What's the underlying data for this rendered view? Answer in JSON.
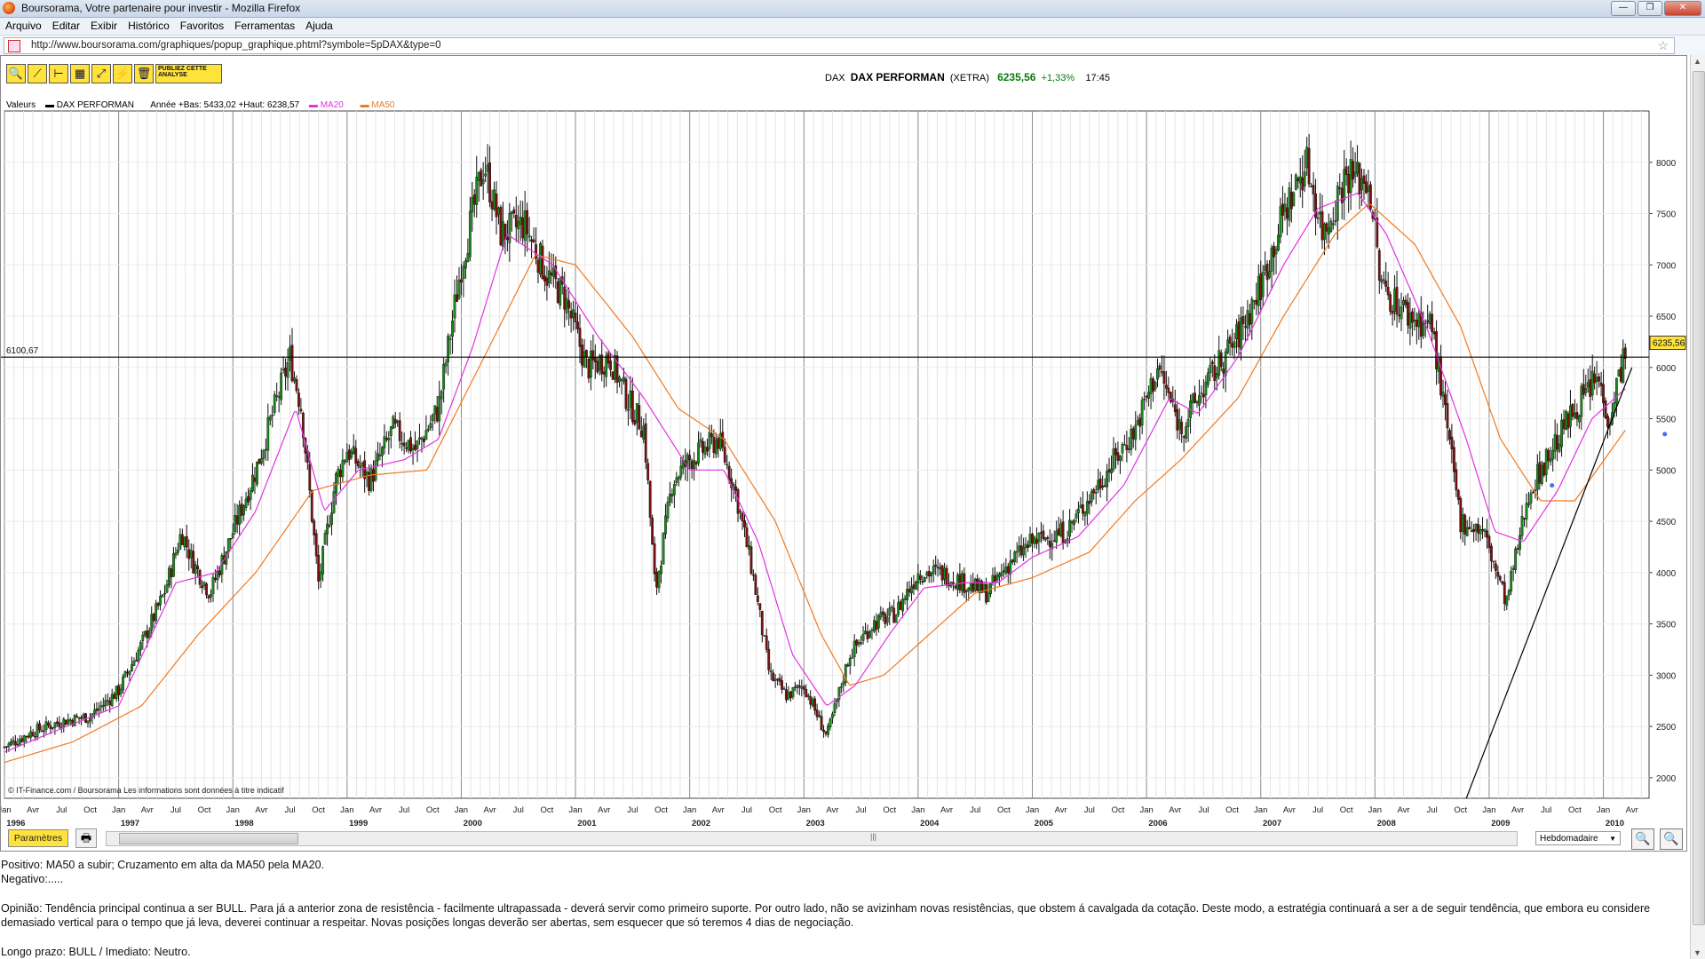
{
  "window": {
    "title": "Boursorama, Votre partenaire pour investir - Mozilla Firefox",
    "buttons": [
      "—",
      "❐",
      "✕"
    ]
  },
  "menu": [
    "Arquivo",
    "Editar",
    "Exibir",
    "Histórico",
    "Favoritos",
    "Ferramentas",
    "Ajuda"
  ],
  "urlbar": {
    "url": "http://www.boursorama.com/graphiques/popup_graphique.phtml?symbole=5pDAX&type=0"
  },
  "toolbar": {
    "publish_label": "PUBLIEZ CETTE ANALYSE"
  },
  "quote": {
    "code": "DAX",
    "name": "DAX PERFORMAN",
    "market": "(XETRA)",
    "price": "6235,56",
    "change": "+1,33%",
    "time": "17:45"
  },
  "legend": {
    "label": "Valeurs",
    "series": "DAX PERFORMAN",
    "range": "Année +Bas: 5433,02 +Haut: 6238,57",
    "ma20": "MA20",
    "ma50": "MA50"
  },
  "colors": {
    "ma20": "#e233e2",
    "ma50": "#f07a20",
    "price_tag": "#ffe23a",
    "accent": "#ffe23a"
  },
  "chart_data": {
    "type": "line",
    "frequency_label": "Hebdomadaire",
    "y_ticks": [
      2000,
      2500,
      3000,
      3500,
      4000,
      4500,
      5000,
      5500,
      6000,
      6500,
      7000,
      7500,
      8000
    ],
    "ylim": [
      1800,
      8500
    ],
    "x_years": [
      "1996",
      "1997",
      "1998",
      "1999",
      "2000",
      "2001",
      "2002",
      "2003",
      "2004",
      "2005",
      "2006",
      "2007",
      "2008",
      "2009",
      "2010"
    ],
    "x_month_labels": [
      "Jan",
      "Avr",
      "Jul",
      "Oct"
    ],
    "hline": {
      "label": "6100,67",
      "value": 6100.67
    },
    "last_price_tag": "6235,56",
    "price_points": [
      [
        1996.0,
        2300
      ],
      [
        1996.25,
        2450
      ],
      [
        1996.5,
        2550
      ],
      [
        1996.75,
        2600
      ],
      [
        1997.0,
        2850
      ],
      [
        1997.2,
        3300
      ],
      [
        1997.4,
        3800
      ],
      [
        1997.55,
        4400
      ],
      [
        1997.65,
        4100
      ],
      [
        1997.8,
        3800
      ],
      [
        1998.0,
        4400
      ],
      [
        1998.2,
        5000
      ],
      [
        1998.5,
        6100
      ],
      [
        1998.6,
        5600
      ],
      [
        1998.75,
        3900
      ],
      [
        1998.9,
        4900
      ],
      [
        1999.0,
        5200
      ],
      [
        1999.2,
        4900
      ],
      [
        1999.4,
        5400
      ],
      [
        1999.6,
        5200
      ],
      [
        1999.8,
        5600
      ],
      [
        2000.0,
        7000
      ],
      [
        2000.2,
        8000
      ],
      [
        2000.35,
        7300
      ],
      [
        2000.55,
        7400
      ],
      [
        2000.75,
        6900
      ],
      [
        2000.9,
        6700
      ],
      [
        2001.1,
        6000
      ],
      [
        2001.3,
        6100
      ],
      [
        2001.45,
        5700
      ],
      [
        2001.6,
        5400
      ],
      [
        2001.7,
        3800
      ],
      [
        2001.85,
        4900
      ],
      [
        2002.0,
        5100
      ],
      [
        2002.25,
        5300
      ],
      [
        2002.4,
        4800
      ],
      [
        2002.55,
        4000
      ],
      [
        2002.7,
        3000
      ],
      [
        2002.85,
        2800
      ],
      [
        2003.0,
        2900
      ],
      [
        2003.2,
        2400
      ],
      [
        2003.4,
        3200
      ],
      [
        2003.6,
        3500
      ],
      [
        2003.8,
        3600
      ],
      [
        2004.0,
        4000
      ],
      [
        2004.2,
        4000
      ],
      [
        2004.4,
        3900
      ],
      [
        2004.6,
        3800
      ],
      [
        2004.8,
        4100
      ],
      [
        2005.0,
        4300
      ],
      [
        2005.3,
        4400
      ],
      [
        2005.6,
        4900
      ],
      [
        2005.9,
        5400
      ],
      [
        2006.1,
        6000
      ],
      [
        2006.3,
        5400
      ],
      [
        2006.5,
        5800
      ],
      [
        2006.8,
        6300
      ],
      [
        2007.0,
        6800
      ],
      [
        2007.2,
        7500
      ],
      [
        2007.4,
        8000
      ],
      [
        2007.55,
        7300
      ],
      [
        2007.75,
        7900
      ],
      [
        2007.95,
        7800
      ],
      [
        2008.05,
        6800
      ],
      [
        2008.3,
        6500
      ],
      [
        2008.5,
        6400
      ],
      [
        2008.75,
        4500
      ],
      [
        2008.95,
        4400
      ],
      [
        2009.15,
        3700
      ],
      [
        2009.35,
        4800
      ],
      [
        2009.55,
        5200
      ],
      [
        2009.75,
        5600
      ],
      [
        2009.95,
        5900
      ],
      [
        2010.05,
        5500
      ],
      [
        2010.2,
        6236
      ]
    ],
    "ma20_points": [
      [
        1996.0,
        2250
      ],
      [
        1996.5,
        2480
      ],
      [
        1997.0,
        2700
      ],
      [
        1997.5,
        3900
      ],
      [
        1997.85,
        4000
      ],
      [
        1998.2,
        4600
      ],
      [
        1998.55,
        5600
      ],
      [
        1998.8,
        4600
      ],
      [
        1999.1,
        5000
      ],
      [
        1999.5,
        5100
      ],
      [
        1999.8,
        5300
      ],
      [
        2000.1,
        6200
      ],
      [
        2000.4,
        7300
      ],
      [
        2000.8,
        7000
      ],
      [
        2001.2,
        6300
      ],
      [
        2001.6,
        5700
      ],
      [
        2002.0,
        5000
      ],
      [
        2002.3,
        5000
      ],
      [
        2002.6,
        4300
      ],
      [
        2002.9,
        3200
      ],
      [
        2003.2,
        2700
      ],
      [
        2003.45,
        2900
      ],
      [
        2003.75,
        3400
      ],
      [
        2004.05,
        3850
      ],
      [
        2004.4,
        3900
      ],
      [
        2004.7,
        3900
      ],
      [
        2005.0,
        4150
      ],
      [
        2005.4,
        4350
      ],
      [
        2005.8,
        4850
      ],
      [
        2006.2,
        5700
      ],
      [
        2006.45,
        5550
      ],
      [
        2006.8,
        6100
      ],
      [
        2007.2,
        7000
      ],
      [
        2007.5,
        7550
      ],
      [
        2007.85,
        7700
      ],
      [
        2008.1,
        7300
      ],
      [
        2008.45,
        6400
      ],
      [
        2008.8,
        5300
      ],
      [
        2009.05,
        4400
      ],
      [
        2009.3,
        4300
      ],
      [
        2009.6,
        4800
      ],
      [
        2009.9,
        5500
      ],
      [
        2010.2,
        5800
      ]
    ],
    "ma50_points": [
      [
        1996.0,
        2150
      ],
      [
        1996.6,
        2350
      ],
      [
        1997.2,
        2700
      ],
      [
        1997.7,
        3400
      ],
      [
        1998.2,
        4000
      ],
      [
        1998.7,
        4800
      ],
      [
        1999.2,
        4950
      ],
      [
        1999.7,
        5000
      ],
      [
        2000.2,
        6100
      ],
      [
        2000.65,
        7100
      ],
      [
        2001.0,
        7000
      ],
      [
        2001.5,
        6300
      ],
      [
        2001.9,
        5600
      ],
      [
        2002.3,
        5300
      ],
      [
        2002.75,
        4500
      ],
      [
        2003.15,
        3400
      ],
      [
        2003.4,
        2900
      ],
      [
        2003.7,
        3000
      ],
      [
        2004.0,
        3300
      ],
      [
        2004.5,
        3800
      ],
      [
        2005.0,
        3950
      ],
      [
        2005.5,
        4200
      ],
      [
        2005.9,
        4700
      ],
      [
        2006.3,
        5100
      ],
      [
        2006.8,
        5700
      ],
      [
        2007.2,
        6500
      ],
      [
        2007.65,
        7300
      ],
      [
        2007.95,
        7600
      ],
      [
        2008.35,
        7200
      ],
      [
        2008.75,
        6400
      ],
      [
        2009.1,
        5300
      ],
      [
        2009.45,
        4700
      ],
      [
        2009.75,
        4700
      ],
      [
        2010.2,
        5400
      ]
    ],
    "trendline": [
      [
        2008.8,
        1800
      ],
      [
        2010.25,
        6000
      ]
    ]
  },
  "bottom": {
    "params_label": "Paramètres",
    "frequency": "Hebdomadaire"
  },
  "commentary": [
    "Positivo: MA50 a subir; Cruzamento em alta da MA50 pela MA20.",
    "Negativo:.....",
    "",
    "Opinião: Tendência principal continua a ser BULL. Para já a anterior zona de resistência - facilmente ultrapassada - deverá servir como primeiro suporte. Por outro lado, não se avizinham novas resistências, que obstem á cavalgada da cotação. Deste modo, a estratégia continuará a ser a de seguir tendência, que embora eu considere demasiado vertical para o tempo que já leva, deverei continuar a respeitar. Novas posições longas deverão ser abertas, sem esquecer que só teremos 4 dias de negociação.",
    "",
    "Longo prazo: BULL  /  Imediato: Neutro."
  ],
  "footer_credit": "© IT-Finance.com / Boursorama Les informations sont données à titre indicatif"
}
